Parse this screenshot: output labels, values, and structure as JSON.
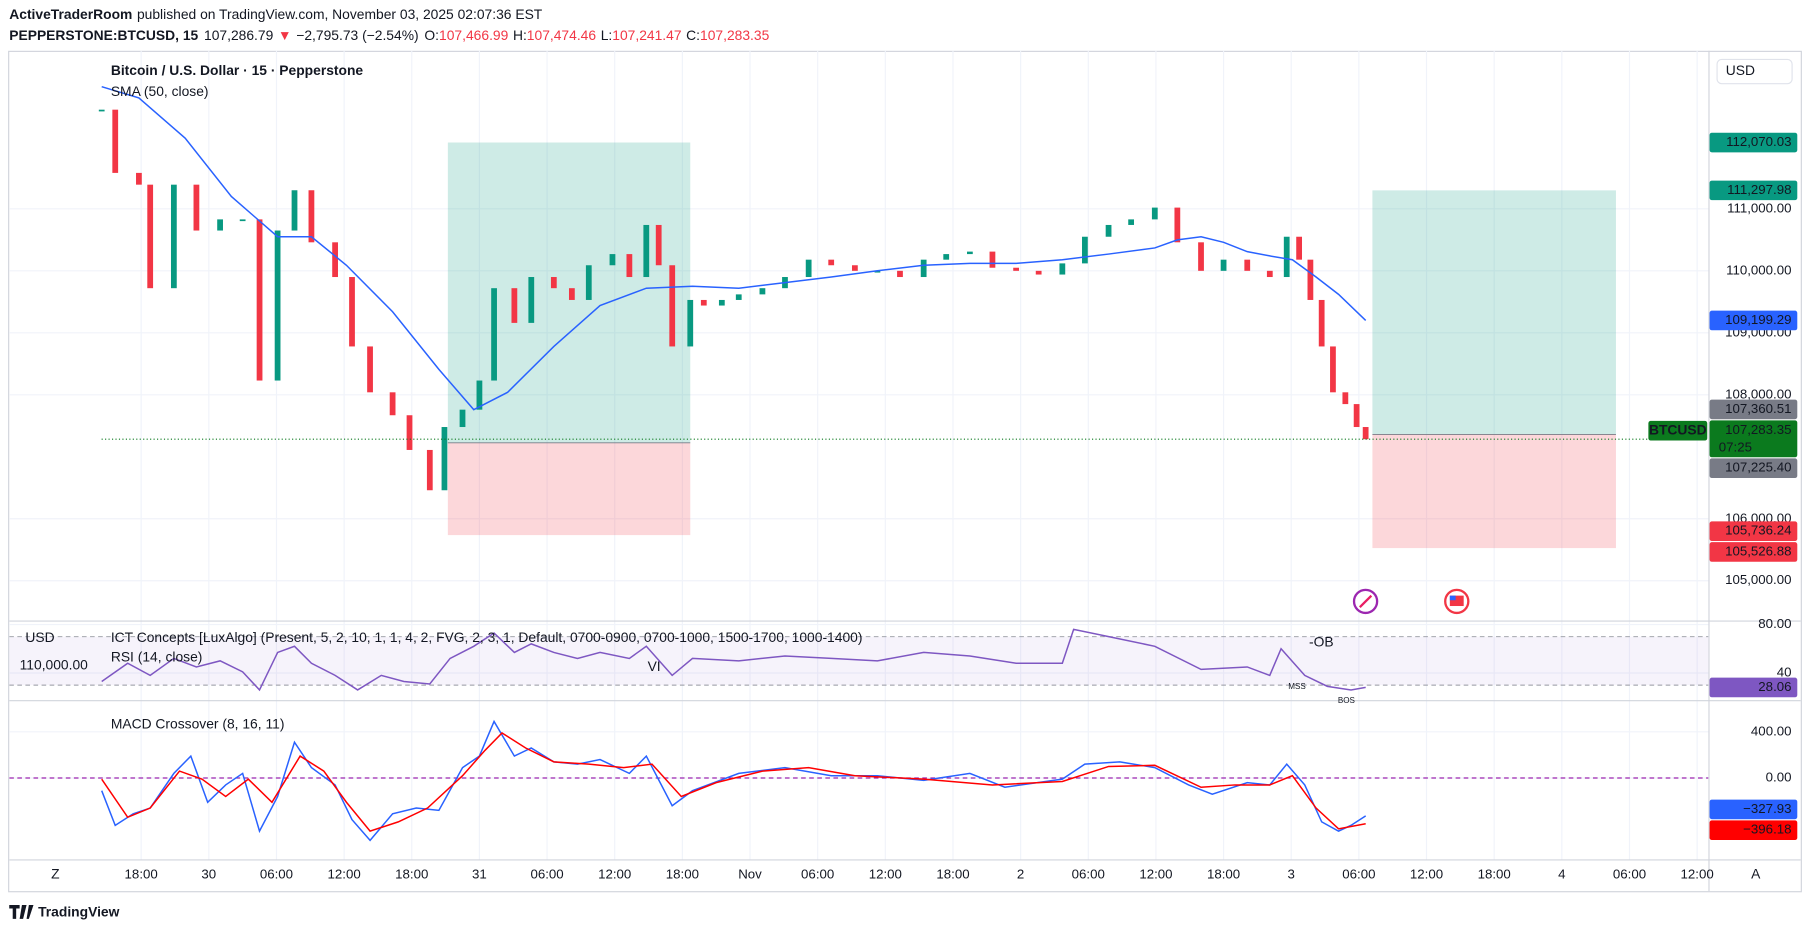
{
  "header": {
    "publisher": "ActiveTraderRoom",
    "published": "published on TradingView.com, November 03, 2025 02:07:36 EST",
    "symbol": "PEPPERSTONE:BTCUSD, 15",
    "last": "107,286.79",
    "arrow": "▼",
    "change": "−2,795.73 (−2.54%)",
    "o_label": "O:",
    "open": "107,466.99",
    "h_label": "H:",
    "high": "107,474.46",
    "l_label": "L:",
    "low": "107,241.47",
    "c_label": "C:",
    "close": "107,283.35"
  },
  "ui": {
    "currency": "USD",
    "zoom": "Z",
    "auto": "A"
  },
  "footer": {
    "brand": "TradingView"
  },
  "chart_data": [
    {
      "type": "candlestick",
      "title": "Bitcoin / U.S. Dollar · 15 · Pepperstone",
      "grid": true,
      "up_color": "#089981",
      "down_color": "#f23645",
      "xlim": [
        -11.7,
        139.0
      ],
      "xticks": [
        {
          "value": 0,
          "label": "18:00"
        },
        {
          "value": 6,
          "label": "30"
        },
        {
          "value": 12,
          "label": "06:00"
        },
        {
          "value": 18,
          "label": "12:00"
        },
        {
          "value": 24,
          "label": "18:00"
        },
        {
          "value": 30,
          "label": "31"
        },
        {
          "value": 36,
          "label": "06:00"
        },
        {
          "value": 42,
          "label": "12:00"
        },
        {
          "value": 48,
          "label": "18:00"
        },
        {
          "value": 54,
          "label": "Nov"
        },
        {
          "value": 60,
          "label": "06:00"
        },
        {
          "value": 66,
          "label": "12:00"
        },
        {
          "value": 72,
          "label": "18:00"
        },
        {
          "value": 78,
          "label": "2"
        },
        {
          "value": 84,
          "label": "06:00"
        },
        {
          "value": 90,
          "label": "12:00"
        },
        {
          "value": 96,
          "label": "18:00"
        },
        {
          "value": 102,
          "label": "3"
        },
        {
          "value": 108,
          "label": "06:00"
        },
        {
          "value": 114,
          "label": "12:00"
        },
        {
          "value": 120,
          "label": "18:00"
        },
        {
          "value": 126,
          "label": "4"
        },
        {
          "value": 132,
          "label": "06:00"
        },
        {
          "value": 138,
          "label": "12:00"
        }
      ],
      "ylim": [
        104350,
        113550
      ],
      "yticks": [
        {
          "value": 105000,
          "label": "105,000.00"
        },
        {
          "value": 106000,
          "label": "106,000.00"
        },
        {
          "value": 108000,
          "label": "108,000.00"
        },
        {
          "value": 109000,
          "label": "109,000.00"
        },
        {
          "value": 110000,
          "label": "110,000.00"
        },
        {
          "value": 111000,
          "label": "111,000.00"
        }
      ],
      "series": [
        {
          "type": "candlestick",
          "symbol": "BTCUSD",
          "countdown": "07:25",
          "last_label": "107,283.35",
          "color": "#0b7a1e",
          "x": [
            -3.5,
            -2.3,
            -0.2,
            0.8,
            2.9,
            4.9,
            7.0,
            9.0,
            10.5,
            12.1,
            13.6,
            15.1,
            17.2,
            18.7,
            20.3,
            22.3,
            23.8,
            25.6,
            26.9,
            28.5,
            30.0,
            31.3,
            33.1,
            34.6,
            36.6,
            38.2,
            39.7,
            41.8,
            43.3,
            44.8,
            45.9,
            47.1,
            48.7,
            49.9,
            51.5,
            53.0,
            55.1,
            57.1,
            59.2,
            61.2,
            63.3,
            65.3,
            67.3,
            69.4,
            71.4,
            73.5,
            75.5,
            77.6,
            79.6,
            81.7,
            83.7,
            85.8,
            87.8,
            89.9,
            91.9,
            94.0,
            96.0,
            98.1,
            100.1,
            101.6,
            102.7,
            103.7,
            104.7,
            105.7,
            106.8,
            107.8,
            108.6
          ],
          "values": [
            112600,
            111580,
            111390,
            109720,
            111390,
            110650,
            110830,
            110830,
            108230,
            110650,
            111300,
            110460,
            109900,
            108780,
            108040,
            107670,
            107110,
            106460,
            107480,
            107760,
            108230,
            109720,
            109160,
            109900,
            109720,
            109530,
            110090,
            110270,
            109900,
            110740,
            110090,
            108780,
            109530,
            109440,
            109530,
            109620,
            109720,
            109900,
            110180,
            110090,
            110000,
            110000,
            109900,
            110180,
            110270,
            110310,
            110050,
            110000,
            109940,
            110120,
            110550,
            110740,
            110830,
            111020,
            110460,
            110000,
            110180,
            110000,
            109900,
            110550,
            110180,
            109530,
            108780,
            108040,
            107850,
            107480,
            107283.35
          ]
        },
        {
          "type": "line",
          "name": "SMA (50, close)",
          "color": "#2962ff",
          "last_label": "109,199.29",
          "x": [
            -3.5,
            -0.2,
            3.9,
            8.0,
            12.1,
            15.1,
            18.2,
            22.3,
            26.4,
            29.5,
            32.5,
            36.6,
            40.7,
            44.8,
            48.9,
            53.0,
            57.1,
            61.2,
            65.3,
            69.4,
            73.5,
            77.6,
            81.7,
            85.8,
            89.9,
            91.9,
            94.0,
            96.0,
            98.1,
            100.1,
            102.1,
            104.2,
            106.2,
            108.6
          ],
          "values": [
            112970,
            112790,
            112140,
            111200,
            110550,
            110550,
            110090,
            109340,
            108410,
            107760,
            108040,
            108780,
            109440,
            109720,
            109750,
            109720,
            109810,
            109900,
            110000,
            110090,
            110120,
            110120,
            110180,
            110270,
            110370,
            110500,
            110550,
            110460,
            110310,
            110240,
            110180,
            109900,
            109620,
            109199.29
          ]
        }
      ],
      "positions": [
        {
          "x": [
            27.2,
            48.7
          ],
          "target": {
            "value": 112070.03,
            "label": "112,070.03"
          },
          "entry": {
            "value": 107225.4,
            "label": "107,225.40"
          },
          "stop": {
            "value": 105736.24,
            "label": "105,736.24"
          }
        },
        {
          "x": [
            109.2,
            130.8
          ],
          "target": {
            "value": 111297.98,
            "label": "111,297.98"
          },
          "entry": {
            "value": 107360.51,
            "label": "107,360.51"
          },
          "stop": {
            "value": 105526.88,
            "label": "105,526.88"
          }
        }
      ],
      "profit_color": "#089981",
      "loss_color": "#f23645",
      "entry_color": "#787b86"
    },
    {
      "type": "line",
      "title": "ICT Concepts [LuxAlgo] (Present, 5, 2, 10, 1, 1, 4, 2, FVG, 2, 3, 1, Default, 0700-0900, 0700-1000, 1500-1700, 1000-1400)",
      "subtitle": "RSI (14, close)",
      "left_scale": {
        "title": "USD",
        "label": "110,000.00"
      },
      "annotations": [
        "-OB",
        "MSS",
        "BOS",
        "VI"
      ],
      "ylim": [
        18.1,
        82.9
      ],
      "yticks": [
        {
          "value": 80,
          "label": "80.00"
        },
        40
      ],
      "bands": [
        70,
        30
      ],
      "grid": true,
      "series": [
        {
          "type": "line",
          "color": "#7e57c2",
          "last_label": "28.06",
          "x": [
            -3.5,
            -1.2,
            0.8,
            2.9,
            4.9,
            7.0,
            9.0,
            10.5,
            12.1,
            13.6,
            15.1,
            17.2,
            19.2,
            21.3,
            23.3,
            25.6,
            27.4,
            29.5,
            31.3,
            33.1,
            34.6,
            36.6,
            38.7,
            40.7,
            43.3,
            44.8,
            47.1,
            48.9,
            53.0,
            57.1,
            61.2,
            65.3,
            69.4,
            73.5,
            77.6,
            81.7,
            82.7,
            85.8,
            89.9,
            94.0,
            98.1,
            100.1,
            101.1,
            103.2,
            105.2,
            107.3,
            108.6
          ],
          "values": [
            33,
            48,
            38,
            52,
            45,
            50,
            41,
            26,
            57,
            62,
            48,
            38,
            26,
            38,
            33,
            31,
            52,
            62,
            73,
            57,
            64,
            57,
            52,
            57,
            52,
            62,
            38,
            52,
            50,
            54,
            52,
            50,
            57,
            54,
            48,
            48,
            76,
            70,
            62,
            43,
            45,
            38,
            60,
            38,
            29,
            26,
            28.06
          ]
        }
      ]
    },
    {
      "type": "line",
      "title": "MACD Crossover (8, 16, 11)",
      "ylim": [
        -710,
        660
      ],
      "yticks": [
        {
          "value": 400,
          "label": "400.00"
        },
        {
          "value": 0,
          "label": "0.00"
        }
      ],
      "grid": true,
      "zero_line": true,
      "zero_color": "#9c27b0",
      "series": [
        {
          "type": "line",
          "color": "#2962ff",
          "last_label": "−327.93",
          "x": [
            -3.5,
            -2.3,
            -0.7,
            0.8,
            2.9,
            4.4,
            5.9,
            7.5,
            9.0,
            10.5,
            12.1,
            13.6,
            15.1,
            17.2,
            18.7,
            20.3,
            22.3,
            24.4,
            26.4,
            28.5,
            30.0,
            31.3,
            33.1,
            34.6,
            36.6,
            38.7,
            40.7,
            43.3,
            44.8,
            47.1,
            48.9,
            53.0,
            57.1,
            61.2,
            65.3,
            69.4,
            73.5,
            76.6,
            81.7,
            83.7,
            86.8,
            89.9,
            92.9,
            95.0,
            98.1,
            100.1,
            101.6,
            103.2,
            104.7,
            106.2,
            107.3,
            108.6
          ],
          "values": [
            -110,
            -410,
            -310,
            -260,
            40,
            190,
            -210,
            -60,
            40,
            -460,
            -160,
            310,
            90,
            -60,
            -360,
            -540,
            -310,
            -260,
            -280,
            90,
            190,
            490,
            190,
            260,
            140,
            120,
            160,
            40,
            190,
            -240,
            -110,
            40,
            90,
            20,
            20,
            -20,
            40,
            -80,
            -10,
            120,
            140,
            90,
            -60,
            -140,
            -40,
            -60,
            120,
            -60,
            -380,
            -460,
            -410,
            -327.93
          ]
        },
        {
          "type": "line",
          "color": "#ff0000",
          "last_label": "−396.18",
          "x": [
            -3.5,
            -1.2,
            0.8,
            3.4,
            5.4,
            7.5,
            9.5,
            11.6,
            14.1,
            16.2,
            18.2,
            20.3,
            22.8,
            25.4,
            28.5,
            30.5,
            32.0,
            34.1,
            36.6,
            39.7,
            42.8,
            45.3,
            47.9,
            51.0,
            55.1,
            59.2,
            63.3,
            69.4,
            75.5,
            81.7,
            85.8,
            89.9,
            94.0,
            97.0,
            100.1,
            102.1,
            104.2,
            106.2,
            108.6
          ],
          "values": [
            -10,
            -340,
            -260,
            60,
            -10,
            -160,
            -10,
            -210,
            190,
            60,
            -210,
            -460,
            -380,
            -260,
            20,
            240,
            390,
            260,
            140,
            120,
            90,
            120,
            -160,
            -40,
            60,
            90,
            20,
            -10,
            -60,
            -30,
            100,
            110,
            -80,
            -60,
            -60,
            20,
            -260,
            -440,
            -396.18
          ]
        }
      ]
    }
  ]
}
